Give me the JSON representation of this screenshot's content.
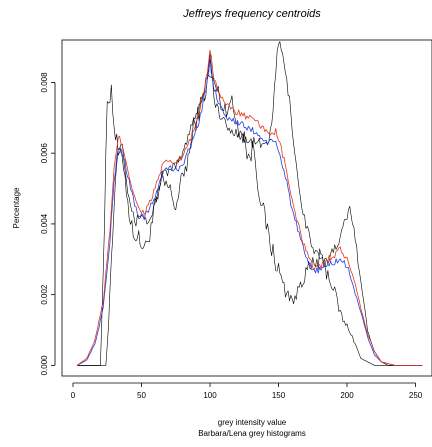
{
  "chart_data": {
    "type": "line",
    "title": "Jeffreys frequency centroids",
    "xlabel": "grey intensity value",
    "xlabel_sub": "Barbara/Lena grey histograms",
    "ylabel": "Percentage",
    "xlim": [
      -8,
      262
    ],
    "ylim": [
      -0.0003,
      0.0092
    ],
    "x_ticks": [
      0,
      50,
      100,
      150,
      200,
      250
    ],
    "x_tick_labels": [
      "0",
      "50",
      "100",
      "150",
      "200",
      "250"
    ],
    "y_ticks": [
      0.0,
      0.002,
      0.004,
      0.006,
      0.008
    ],
    "y_tick_labels": [
      "0.000",
      "0.002",
      "0.004",
      "0.006",
      "0.008"
    ],
    "grid": false,
    "legend": "none",
    "series": [
      {
        "color": "#000000",
        "width": 0.6,
        "jitter": 0.0006,
        "points": [
          [
            3,
            0
          ],
          [
            20,
            0
          ],
          [
            23,
            0.004
          ],
          [
            25,
            0.0075
          ],
          [
            28,
            0.0078
          ],
          [
            30,
            0.0068
          ],
          [
            33,
            0.006
          ],
          [
            37,
            0.0057
          ],
          [
            42,
            0.004
          ],
          [
            47,
            0.0036
          ],
          [
            53,
            0.0033
          ],
          [
            60,
            0.0044
          ],
          [
            65,
            0.0052
          ],
          [
            70,
            0.005
          ],
          [
            75,
            0.0045
          ],
          [
            80,
            0.0053
          ],
          [
            85,
            0.006
          ],
          [
            88,
            0.0067
          ],
          [
            92,
            0.0072
          ],
          [
            96,
            0.0077
          ],
          [
            100,
            0.0082
          ],
          [
            105,
            0.0078
          ],
          [
            110,
            0.0072
          ],
          [
            115,
            0.0075
          ],
          [
            120,
            0.0068
          ],
          [
            125,
            0.0065
          ],
          [
            128,
            0.0058
          ],
          [
            132,
            0.0062
          ],
          [
            135,
            0.0052
          ],
          [
            138,
            0.0045
          ],
          [
            142,
            0.0038
          ],
          [
            145,
            0.0033
          ],
          [
            150,
            0.0027
          ],
          [
            155,
            0.0021
          ],
          [
            158,
            0.002
          ],
          [
            162,
            0.0018
          ],
          [
            166,
            0.0024
          ],
          [
            170,
            0.0026
          ],
          [
            175,
            0.0028
          ],
          [
            180,
            0.003
          ],
          [
            185,
            0.0027
          ],
          [
            190,
            0.0022
          ],
          [
            195,
            0.0015
          ],
          [
            198,
            0.0012
          ],
          [
            202,
            0.001
          ],
          [
            206,
            0.0006
          ],
          [
            210,
            0.0002
          ],
          [
            215,
            0.0001
          ],
          [
            220,
            0
          ],
          [
            255,
            0
          ]
        ]
      },
      {
        "color": "#000000",
        "width": 0.6,
        "jitter": 0.0003,
        "points": [
          [
            3,
            0
          ],
          [
            24,
            0
          ],
          [
            26,
            0.0012
          ],
          [
            28,
            0.003
          ],
          [
            31,
            0.0052
          ],
          [
            33,
            0.0062
          ],
          [
            36,
            0.0063
          ],
          [
            40,
            0.005
          ],
          [
            45,
            0.004
          ],
          [
            50,
            0.0043
          ],
          [
            55,
            0.004
          ],
          [
            60,
            0.0046
          ],
          [
            65,
            0.0054
          ],
          [
            72,
            0.0055
          ],
          [
            78,
            0.0058
          ],
          [
            82,
            0.0062
          ],
          [
            86,
            0.0068
          ],
          [
            92,
            0.0073
          ],
          [
            96,
            0.0078
          ],
          [
            98,
            0.0082
          ],
          [
            100,
            0.0089
          ],
          [
            103,
            0.0075
          ],
          [
            108,
            0.007
          ],
          [
            115,
            0.0066
          ],
          [
            120,
            0.0066
          ],
          [
            125,
            0.0064
          ],
          [
            130,
            0.0063
          ],
          [
            135,
            0.0063
          ],
          [
            140,
            0.0062
          ],
          [
            143,
            0.0064
          ],
          [
            146,
            0.0072
          ],
          [
            149,
            0.0088
          ],
          [
            151,
            0.0092
          ],
          [
            154,
            0.0085
          ],
          [
            158,
            0.0075
          ],
          [
            162,
            0.006
          ],
          [
            166,
            0.0047
          ],
          [
            170,
            0.004
          ],
          [
            175,
            0.0033
          ],
          [
            180,
            0.003
          ],
          [
            185,
            0.0029
          ],
          [
            190,
            0.0033
          ],
          [
            195,
            0.0036
          ],
          [
            198,
            0.004
          ],
          [
            202,
            0.0044
          ],
          [
            205,
            0.004
          ],
          [
            208,
            0.003
          ],
          [
            212,
            0.0018
          ],
          [
            215,
            0.001
          ],
          [
            220,
            0.0004
          ],
          [
            225,
            0.0001
          ],
          [
            230,
            0
          ],
          [
            255,
            0
          ]
        ]
      },
      {
        "color": "#1f3fe6",
        "width": 0.8,
        "jitter": 0.0002,
        "points": [
          [
            3,
            0
          ],
          [
            10,
            0.00015
          ],
          [
            16,
            0.0006
          ],
          [
            22,
            0.0016
          ],
          [
            27,
            0.0035
          ],
          [
            30,
            0.0052
          ],
          [
            33,
            0.0062
          ],
          [
            37,
            0.0059
          ],
          [
            42,
            0.005
          ],
          [
            47,
            0.0043
          ],
          [
            52,
            0.0042
          ],
          [
            56,
            0.0044
          ],
          [
            60,
            0.0048
          ],
          [
            65,
            0.0054
          ],
          [
            70,
            0.0056
          ],
          [
            75,
            0.0055
          ],
          [
            80,
            0.0057
          ],
          [
            86,
            0.0062
          ],
          [
            91,
            0.0068
          ],
          [
            95,
            0.0074
          ],
          [
            98,
            0.008
          ],
          [
            100,
            0.0086
          ],
          [
            103,
            0.0078
          ],
          [
            108,
            0.0073
          ],
          [
            113,
            0.007
          ],
          [
            118,
            0.0069
          ],
          [
            123,
            0.0068
          ],
          [
            128,
            0.0067
          ],
          [
            133,
            0.0066
          ],
          [
            138,
            0.0064
          ],
          [
            143,
            0.0063
          ],
          [
            148,
            0.0063
          ],
          [
            152,
            0.0058
          ],
          [
            156,
            0.0052
          ],
          [
            160,
            0.0044
          ],
          [
            165,
            0.0037
          ],
          [
            170,
            0.003
          ],
          [
            175,
            0.0027
          ],
          [
            180,
            0.0027
          ],
          [
            185,
            0.0028
          ],
          [
            190,
            0.0029
          ],
          [
            195,
            0.003
          ],
          [
            200,
            0.0028
          ],
          [
            205,
            0.0022
          ],
          [
            210,
            0.0015
          ],
          [
            215,
            0.0008
          ],
          [
            220,
            0.0003
          ],
          [
            225,
            0.0001
          ],
          [
            235,
            0
          ],
          [
            255,
            0
          ]
        ]
      },
      {
        "color": "#e8351a",
        "width": 0.8,
        "jitter": 0.0002,
        "points": [
          [
            3,
            0
          ],
          [
            10,
            0.0002
          ],
          [
            16,
            0.0007
          ],
          [
            22,
            0.0018
          ],
          [
            27,
            0.0038
          ],
          [
            30,
            0.0055
          ],
          [
            33,
            0.0065
          ],
          [
            37,
            0.0061
          ],
          [
            42,
            0.0052
          ],
          [
            47,
            0.0045
          ],
          [
            52,
            0.0043
          ],
          [
            56,
            0.0046
          ],
          [
            60,
            0.005
          ],
          [
            65,
            0.0056
          ],
          [
            70,
            0.0058
          ],
          [
            75,
            0.0057
          ],
          [
            80,
            0.0059
          ],
          [
            86,
            0.0064
          ],
          [
            91,
            0.007
          ],
          [
            95,
            0.0077
          ],
          [
            98,
            0.0083
          ],
          [
            100,
            0.009
          ],
          [
            103,
            0.0081
          ],
          [
            108,
            0.0076
          ],
          [
            113,
            0.0073
          ],
          [
            118,
            0.0072
          ],
          [
            123,
            0.0071
          ],
          [
            128,
            0.007
          ],
          [
            133,
            0.0069
          ],
          [
            138,
            0.0067
          ],
          [
            143,
            0.0066
          ],
          [
            148,
            0.0066
          ],
          [
            152,
            0.0061
          ],
          [
            156,
            0.0055
          ],
          [
            160,
            0.0046
          ],
          [
            165,
            0.0039
          ],
          [
            170,
            0.0032
          ],
          [
            175,
            0.0028
          ],
          [
            180,
            0.0028
          ],
          [
            185,
            0.003
          ],
          [
            190,
            0.0031
          ],
          [
            195,
            0.0033
          ],
          [
            200,
            0.003
          ],
          [
            205,
            0.0024
          ],
          [
            210,
            0.0016
          ],
          [
            215,
            0.0009
          ],
          [
            220,
            0.0004
          ],
          [
            225,
            0.0001
          ],
          [
            235,
            0
          ],
          [
            255,
            0
          ]
        ]
      }
    ]
  }
}
